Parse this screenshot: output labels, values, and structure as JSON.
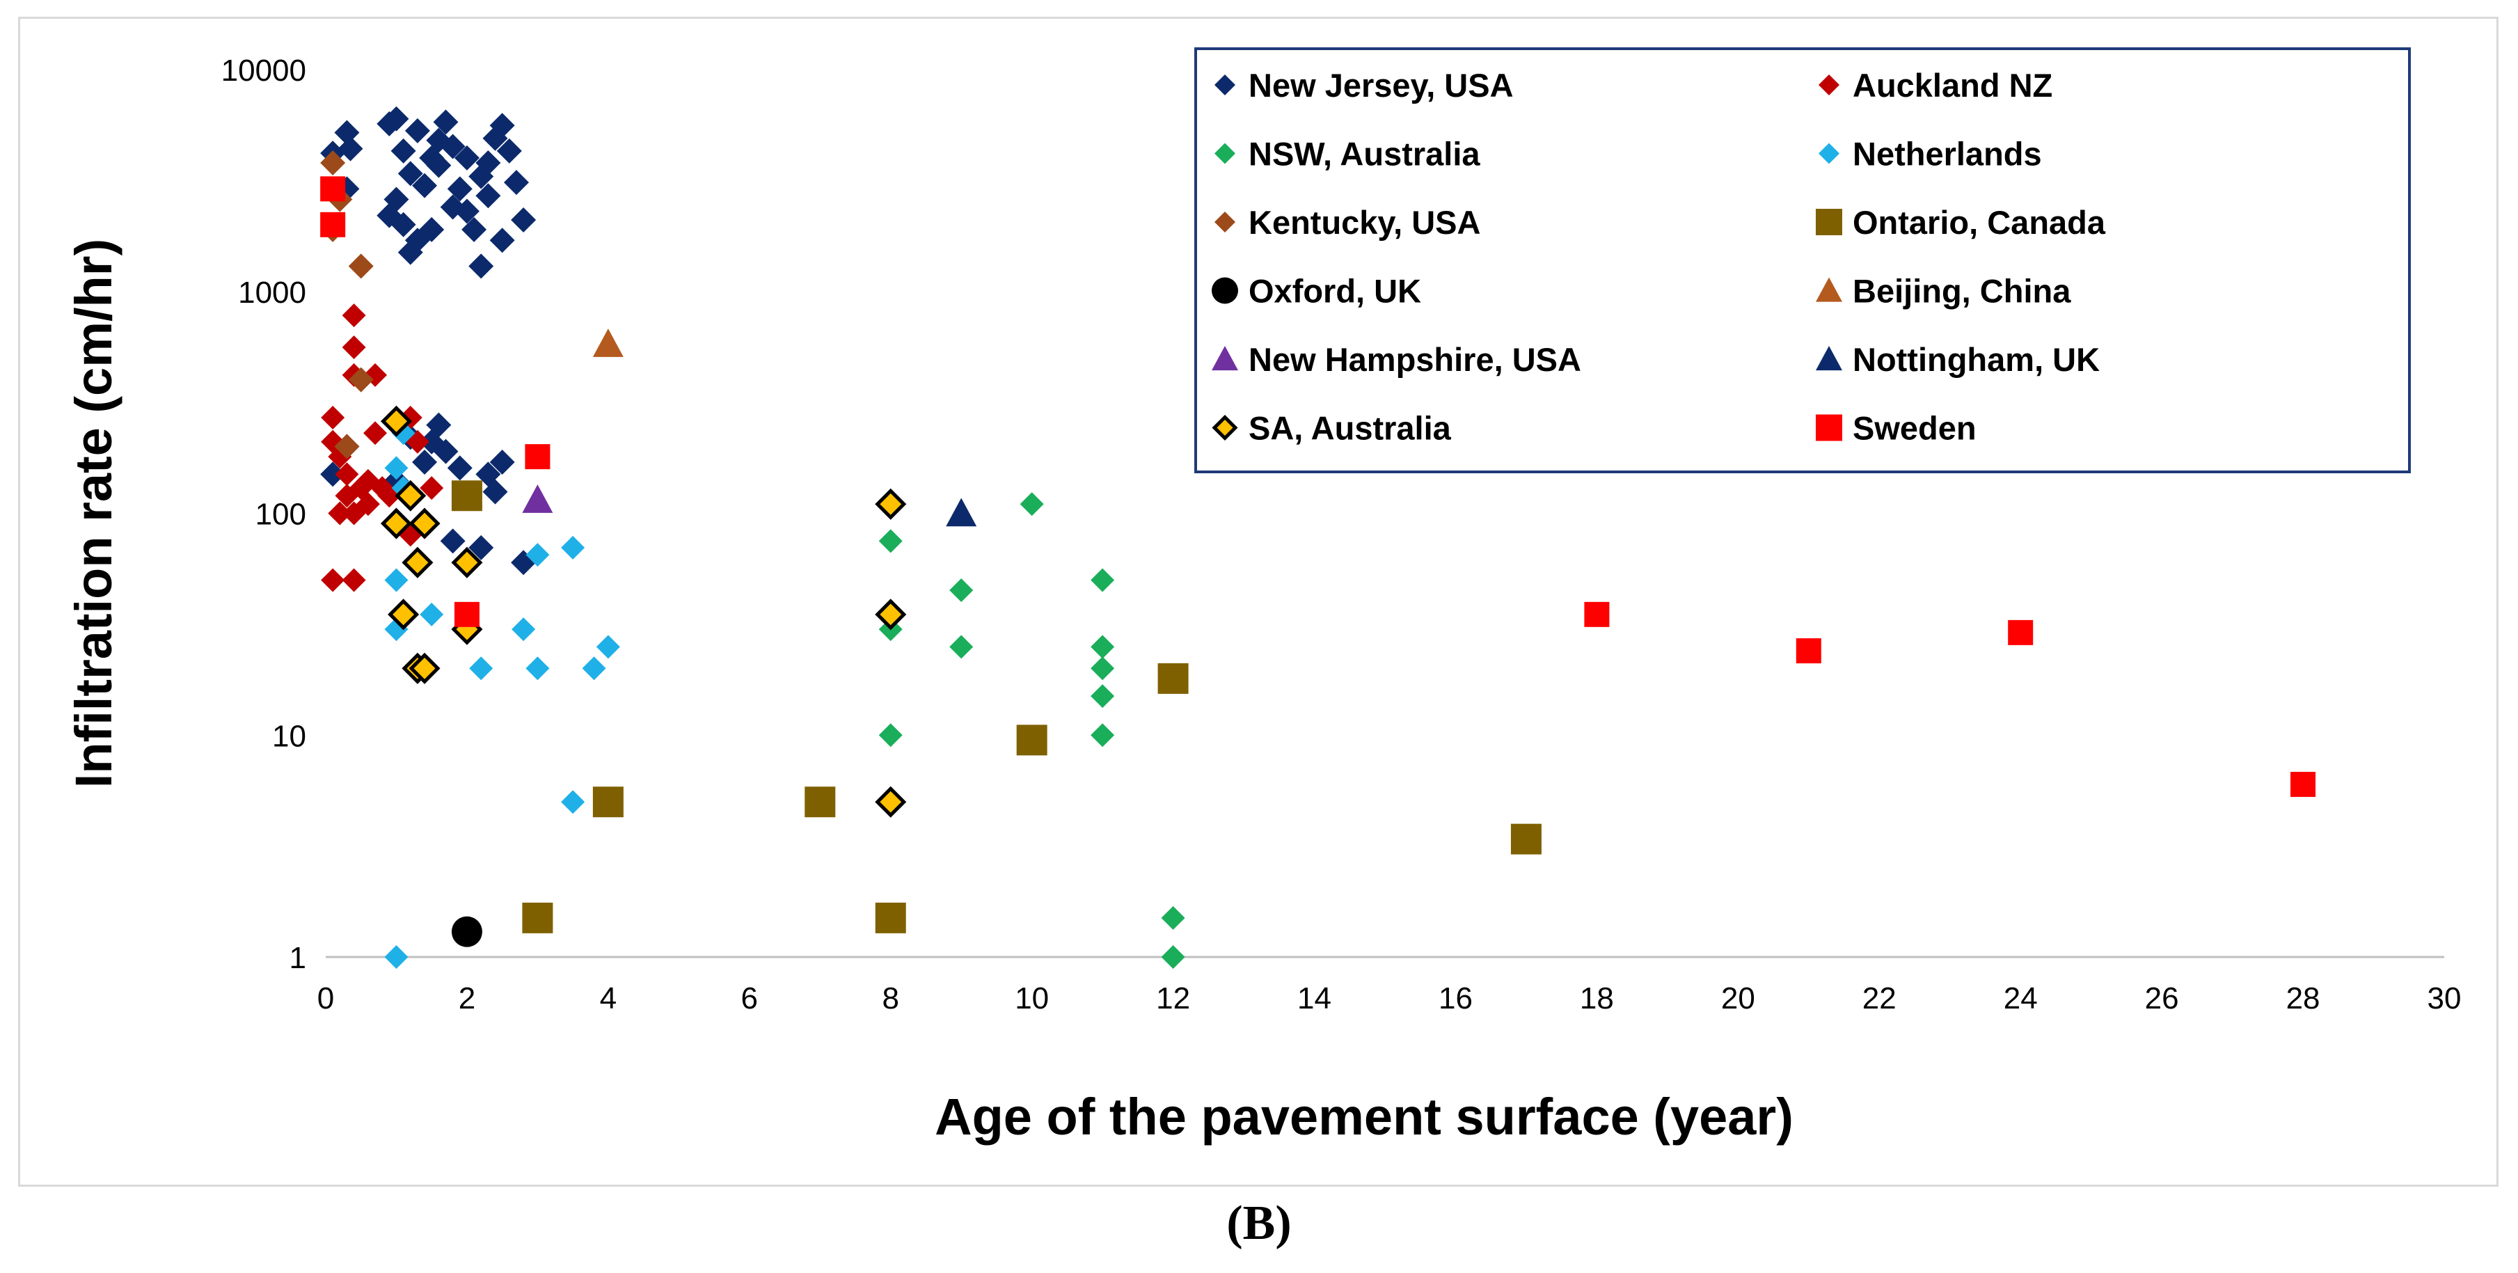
{
  "caption": "(B)",
  "chart_data": {
    "type": "scatter",
    "xlabel": "Age of the pavement surface (year)",
    "ylabel": "Infiltration rate (cm/hr)",
    "xlim": [
      0,
      30
    ],
    "ylim": [
      1,
      10000
    ],
    "yscale": "log",
    "x_ticks": [
      0,
      2,
      4,
      6,
      8,
      10,
      12,
      14,
      16,
      18,
      20,
      22,
      24,
      26,
      28,
      30
    ],
    "y_ticks": [
      1,
      10,
      100,
      1000,
      10000
    ],
    "legend_position": "top-right",
    "series": [
      {
        "name": "New Jersey, USA",
        "marker": "diamond",
        "color": "#0c2a6b",
        "edge": "none",
        "size": 36,
        "points": [
          [
            0.1,
            4200
          ],
          [
            0.2,
            2700
          ],
          [
            0.3,
            5200
          ],
          [
            0.35,
            4400
          ],
          [
            0.3,
            2900
          ],
          [
            0.9,
            5700
          ],
          [
            1.0,
            6000
          ],
          [
            1.1,
            4300
          ],
          [
            1.2,
            3400
          ],
          [
            1.0,
            2600
          ],
          [
            0.9,
            2200
          ],
          [
            1.1,
            2000
          ],
          [
            1.3,
            1700
          ],
          [
            1.5,
            1900
          ],
          [
            1.4,
            3000
          ],
          [
            1.6,
            4800
          ],
          [
            1.7,
            5800
          ],
          [
            1.8,
            4500
          ],
          [
            1.6,
            3700
          ],
          [
            1.9,
            2900
          ],
          [
            2.0,
            2300
          ],
          [
            2.1,
            1900
          ],
          [
            2.2,
            3300
          ],
          [
            2.3,
            2700
          ],
          [
            2.4,
            4900
          ],
          [
            2.5,
            5600
          ],
          [
            2.6,
            4300
          ],
          [
            2.7,
            3100
          ],
          [
            2.8,
            2100
          ],
          [
            2.5,
            1700
          ],
          [
            2.2,
            1300
          ],
          [
            1.3,
            5300
          ],
          [
            1.5,
            4000
          ],
          [
            2.0,
            4000
          ],
          [
            2.3,
            3800
          ],
          [
            1.8,
            2400
          ],
          [
            1.2,
            1500
          ],
          [
            0.1,
            150
          ],
          [
            0.3,
            200
          ],
          [
            1.2,
            220
          ],
          [
            1.4,
            170
          ],
          [
            1.5,
            210
          ],
          [
            1.6,
            250
          ],
          [
            1.7,
            190
          ],
          [
            1.9,
            160
          ],
          [
            1.0,
            140
          ],
          [
            2.3,
            150
          ],
          [
            2.5,
            170
          ],
          [
            2.4,
            125
          ],
          [
            2.2,
            70
          ],
          [
            1.8,
            75
          ],
          [
            2.8,
            60
          ]
        ]
      },
      {
        "name": "Auckland NZ",
        "marker": "diamond",
        "color": "#c00000",
        "edge": "none",
        "size": 34,
        "points": [
          [
            0.4,
            780
          ],
          [
            0.4,
            560
          ],
          [
            0.4,
            420
          ],
          [
            0.7,
            420
          ],
          [
            0.1,
            270
          ],
          [
            0.1,
            210
          ],
          [
            0.2,
            180
          ],
          [
            0.3,
            150
          ],
          [
            0.5,
            130
          ],
          [
            0.4,
            100
          ],
          [
            0.2,
            100
          ],
          [
            0.6,
            110
          ],
          [
            0.8,
            130
          ],
          [
            0.9,
            120
          ],
          [
            0.7,
            230
          ],
          [
            1.2,
            270
          ],
          [
            1.3,
            210
          ],
          [
            0.1,
            50
          ],
          [
            0.4,
            50
          ],
          [
            1.5,
            130
          ],
          [
            1.2,
            80
          ],
          [
            0.6,
            140
          ],
          [
            0.3,
            120
          ]
        ]
      },
      {
        "name": "NSW, Australia",
        "marker": "diamond",
        "color": "#1aae5a",
        "edge": "none",
        "size": 34,
        "points": [
          [
            10,
            110
          ],
          [
            8,
            75
          ],
          [
            9,
            45
          ],
          [
            11,
            50
          ],
          [
            8,
            30
          ],
          [
            9,
            25
          ],
          [
            11,
            25
          ],
          [
            11,
            20
          ],
          [
            11,
            15
          ],
          [
            8,
            10
          ],
          [
            11,
            10
          ],
          [
            12,
            1.5
          ],
          [
            12,
            1
          ]
        ]
      },
      {
        "name": "Netherlands",
        "marker": "diamond",
        "color": "#1fb0e8",
        "edge": "none",
        "size": 34,
        "points": [
          [
            1.1,
            230
          ],
          [
            1.0,
            160
          ],
          [
            1.1,
            130
          ],
          [
            1.0,
            50
          ],
          [
            1.1,
            35
          ],
          [
            1.5,
            35
          ],
          [
            1.0,
            30
          ],
          [
            2.2,
            20
          ],
          [
            2.8,
            30
          ],
          [
            3.0,
            65
          ],
          [
            3.0,
            20
          ],
          [
            3.5,
            70
          ],
          [
            3.8,
            20
          ],
          [
            4.0,
            25
          ],
          [
            3.5,
            5
          ],
          [
            1.0,
            1
          ]
        ]
      },
      {
        "name": "Kentucky, USA",
        "marker": "diamond",
        "color": "#9c4a1a",
        "edge": "none",
        "size": 36,
        "points": [
          [
            0.1,
            3800
          ],
          [
            0.2,
            2600
          ],
          [
            0.1,
            1900
          ],
          [
            0.5,
            1300
          ],
          [
            0.5,
            400
          ],
          [
            0.3,
            200
          ]
        ]
      },
      {
        "name": "Ontario, Canada",
        "marker": "square",
        "color": "#7f6000",
        "edge": "none",
        "size": 44,
        "points": [
          [
            2,
            120
          ],
          [
            3,
            1.5
          ],
          [
            4,
            5
          ],
          [
            7,
            5
          ],
          [
            8,
            1.5
          ],
          [
            10,
            9.5
          ],
          [
            12,
            18
          ],
          [
            17,
            3.4
          ]
        ]
      },
      {
        "name": "Oxford, UK",
        "marker": "circle",
        "color": "#000000",
        "edge": "none",
        "size": 44,
        "points": [
          [
            2,
            1.3
          ]
        ]
      },
      {
        "name": "Beijing, China",
        "marker": "triangle",
        "color": "#b45a1e",
        "edge": "none",
        "size": 44,
        "points": [
          [
            4,
            580
          ]
        ]
      },
      {
        "name": "New Hampshire, USA",
        "marker": "triangle",
        "color": "#7030a0",
        "edge": "none",
        "size": 44,
        "points": [
          [
            3,
            115
          ]
        ]
      },
      {
        "name": "Nottingham, UK",
        "marker": "triangle",
        "color": "#0c2a6b",
        "edge": "none",
        "size": 44,
        "points": [
          [
            9,
            100
          ]
        ]
      },
      {
        "name": "SA, Australia",
        "marker": "diamond",
        "color": "#ffc000",
        "edge": "#000000",
        "size": 38,
        "points": [
          [
            1.0,
            260
          ],
          [
            1.2,
            120
          ],
          [
            1.0,
            90
          ],
          [
            1.4,
            90
          ],
          [
            1.3,
            60
          ],
          [
            2.0,
            60
          ],
          [
            1.1,
            35
          ],
          [
            2.0,
            30
          ],
          [
            1.3,
            20
          ],
          [
            1.4,
            20
          ],
          [
            8,
            110
          ],
          [
            8,
            35
          ],
          [
            8,
            5
          ]
        ]
      },
      {
        "name": "Sweden",
        "marker": "square",
        "color": "#ff0000",
        "edge": "none",
        "size": 36,
        "points": [
          [
            0.1,
            2900
          ],
          [
            0.1,
            2000
          ],
          [
            3,
            180
          ],
          [
            2,
            35
          ],
          [
            18,
            35
          ],
          [
            21,
            24
          ],
          [
            24,
            29
          ],
          [
            28,
            6
          ]
        ]
      }
    ]
  }
}
